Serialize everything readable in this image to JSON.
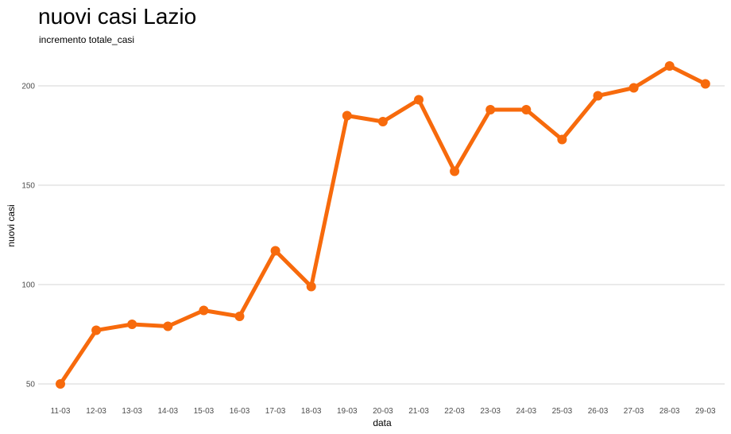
{
  "chart_data": {
    "type": "line",
    "title": "nuovi casi Lazio",
    "subtitle": "incremento totale_casi",
    "xlabel": "data",
    "ylabel": "nuovi casi",
    "categories": [
      "11-03",
      "12-03",
      "13-03",
      "14-03",
      "15-03",
      "16-03",
      "17-03",
      "18-03",
      "19-03",
      "20-03",
      "21-03",
      "22-03",
      "23-03",
      "24-03",
      "25-03",
      "26-03",
      "27-03",
      "28-03",
      "29-03"
    ],
    "series": [
      {
        "values": [
          50,
          77,
          80,
          79,
          87,
          84,
          117,
          99,
          185,
          182,
          193,
          157,
          188,
          188,
          173,
          195,
          199,
          210,
          201
        ]
      }
    ],
    "yticks": [
      50,
      100,
      150,
      200
    ],
    "ylim": [
      45,
      215
    ],
    "grid": true,
    "legend": "none",
    "color": "#f76a0c"
  }
}
